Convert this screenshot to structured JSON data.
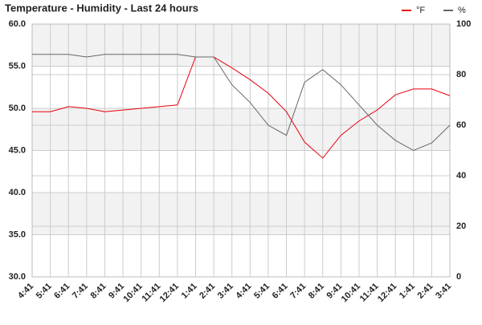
{
  "chart_data": {
    "type": "line",
    "title": "Temperature - Humidity - Last 24 hours",
    "categories": [
      "4:41",
      "5:41",
      "6:41",
      "7:41",
      "8:41",
      "9:41",
      "10:41",
      "11:41",
      "12:41",
      "1:41",
      "2:41",
      "3:41",
      "4:41",
      "5:41",
      "6:41",
      "7:41",
      "8:41",
      "9:41",
      "10:41",
      "11:41",
      "12:41",
      "1:41",
      "2:41",
      "3:41"
    ],
    "series": [
      {
        "name": "°F",
        "color": "#e8000b",
        "values": [
          49.6,
          49.6,
          50.2,
          50.0,
          49.6,
          49.8,
          50.0,
          50.2,
          50.4,
          56.1,
          56.1,
          54.8,
          53.4,
          51.8,
          49.6,
          46.0,
          44.1,
          46.8,
          48.5,
          49.8,
          51.6,
          52.3,
          52.3,
          51.5
        ]
      },
      {
        "name": "%",
        "color": "#666666",
        "axis": "y2",
        "values": [
          88,
          88,
          88,
          87,
          88,
          88,
          88,
          88,
          88,
          87,
          87,
          76,
          69,
          60,
          56,
          77,
          82,
          76,
          68,
          60,
          54,
          50,
          53,
          60
        ]
      }
    ],
    "ylim": [
      30,
      60
    ],
    "yticks": [
      {
        "value": 30,
        "label": "30.0"
      },
      {
        "value": 35,
        "label": "35.0"
      },
      {
        "value": 40,
        "label": "40.0"
      },
      {
        "value": 45,
        "label": "45.0"
      },
      {
        "value": 50,
        "label": "50.0"
      },
      {
        "value": 55,
        "label": "55.0"
      },
      {
        "value": 60,
        "label": "60.0"
      }
    ],
    "y2lim": [
      0,
      100
    ],
    "y2ticks": [
      0,
      20,
      40,
      60,
      80,
      100
    ],
    "grid": true,
    "banded": true,
    "legend": "top-right"
  }
}
